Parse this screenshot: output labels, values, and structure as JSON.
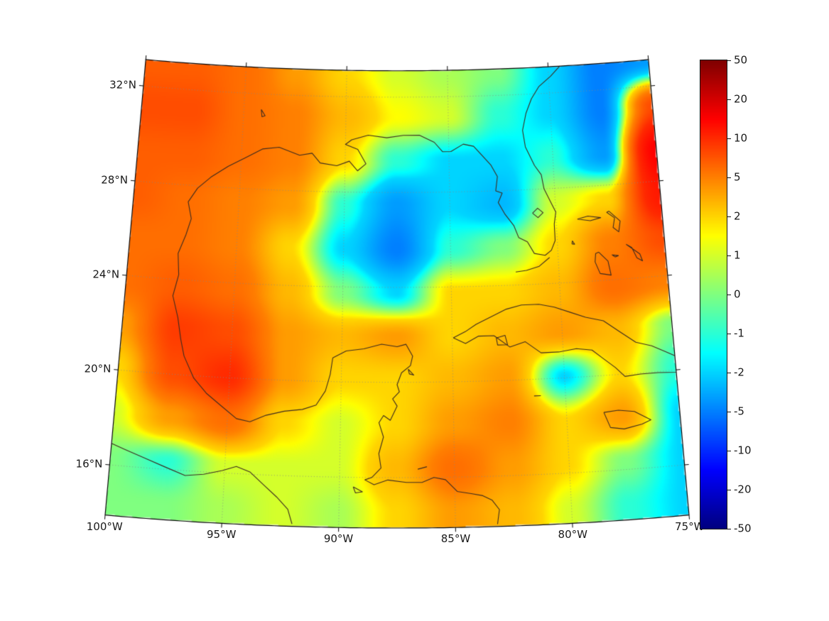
{
  "figure": {
    "background": "#ffffff"
  },
  "chart_data": {
    "type": "heatmap",
    "title": "",
    "projection": {
      "name": "lambert-conformal-conic",
      "lon0": -87.5,
      "lat1": 18,
      "lat2": 30
    },
    "extent": {
      "lon_min": -100,
      "lon_max": -75,
      "lat_min": 13.9,
      "lat_max": 33.1
    },
    "grid": {
      "lons": [
        -100,
        -97.5,
        -95,
        -92.5,
        -90,
        -87.5,
        -85,
        -82.5,
        -80,
        -77.5,
        -75
      ],
      "lats": [
        14.5,
        16.35,
        18.2,
        20.05,
        21.9,
        23.75,
        25.6,
        27.45,
        29.3,
        31.15,
        33
      ],
      "values": [
        [
          0,
          0,
          0.5,
          1,
          0.5,
          2,
          4,
          3,
          1,
          -1,
          -2
        ],
        [
          0,
          -1,
          1,
          1,
          1,
          3,
          6,
          4,
          2,
          0,
          -2
        ],
        [
          1,
          4,
          6,
          2,
          1,
          2,
          4,
          5,
          2,
          4,
          -2
        ],
        [
          2,
          8,
          10,
          4,
          2,
          2,
          3,
          4,
          -2,
          2,
          -1
        ],
        [
          4,
          9,
          8,
          4,
          3,
          4,
          2,
          3,
          4,
          3,
          0
        ],
        [
          6,
          7,
          6,
          3,
          0,
          -2,
          2,
          2,
          3,
          6,
          5
        ],
        [
          6,
          6,
          5,
          2,
          -2,
          -5,
          -1,
          0,
          2,
          5,
          8
        ],
        [
          7,
          6,
          5,
          4,
          -1,
          -4,
          -2,
          -3,
          1,
          2,
          12
        ],
        [
          7,
          7,
          6,
          5,
          2,
          -1,
          -2,
          -2,
          -1,
          -4,
          15
        ],
        [
          8,
          8,
          6,
          5,
          3,
          1.5,
          1,
          -1,
          -2,
          -5,
          8
        ],
        [
          7,
          7,
          6,
          4,
          2,
          1,
          0.5,
          0,
          -2,
          -5,
          -4
        ]
      ]
    },
    "color_scale": {
      "name": "jet",
      "min": -50,
      "max": 50,
      "levels": [
        -50,
        -20,
        -10,
        -5,
        -2,
        -1,
        0,
        1,
        2,
        5,
        10,
        20,
        50
      ]
    },
    "axes": {
      "lat_ticks": [
        {
          "value": 32,
          "label": "32°N"
        },
        {
          "value": 28,
          "label": "28°N"
        },
        {
          "value": 24,
          "label": "24°N"
        },
        {
          "value": 20,
          "label": "20°N"
        },
        {
          "value": 16,
          "label": "16°N"
        }
      ],
      "lon_ticks": [
        {
          "value": -100,
          "label": "100°W"
        },
        {
          "value": -95,
          "label": "95°W"
        },
        {
          "value": -90,
          "label": "90°W"
        },
        {
          "value": -85,
          "label": "85°W"
        },
        {
          "value": -80,
          "label": "80°W"
        },
        {
          "value": -75,
          "label": "75°W"
        }
      ],
      "graticule_lats": [
        16,
        20,
        24,
        28,
        32
      ],
      "graticule_lons": [
        -95,
        -90,
        -85,
        -80
      ],
      "graticule_color": "#888888",
      "border_color": "#000000"
    },
    "colorbar": {
      "tick_labels": [
        "50",
        "20",
        "10",
        "5",
        "2",
        "1",
        "0",
        "-1",
        "-2",
        "-5",
        "-10",
        "-20",
        "-50"
      ]
    },
    "coastline_color": "#3d2b1f",
    "coastlines": [
      [
        [
          -97.6,
          24.2
        ],
        [
          -97.7,
          25.1
        ],
        [
          -97.4,
          25.9
        ],
        [
          -97.2,
          26.6
        ],
        [
          -97.4,
          27.3
        ],
        [
          -97.0,
          27.9
        ],
        [
          -96.4,
          28.4
        ],
        [
          -95.6,
          28.9
        ],
        [
          -94.8,
          29.3
        ],
        [
          -94.0,
          29.7
        ],
        [
          -93.2,
          29.8
        ],
        [
          -92.2,
          29.5
        ],
        [
          -91.6,
          29.6
        ],
        [
          -91.2,
          29.2
        ],
        [
          -90.4,
          29.1
        ],
        [
          -89.8,
          29.3
        ],
        [
          -89.4,
          28.9
        ],
        [
          -89.0,
          29.2
        ],
        [
          -89.4,
          29.8
        ],
        [
          -90.0,
          30.0
        ],
        [
          -89.7,
          30.2
        ],
        [
          -88.9,
          30.4
        ],
        [
          -88.0,
          30.3
        ],
        [
          -87.2,
          30.4
        ],
        [
          -86.4,
          30.4
        ],
        [
          -85.7,
          30.1
        ],
        [
          -85.3,
          29.7
        ],
        [
          -84.9,
          29.7
        ],
        [
          -84.3,
          30.0
        ],
        [
          -83.8,
          29.9
        ],
        [
          -83.4,
          29.5
        ],
        [
          -83.0,
          29.1
        ],
        [
          -82.7,
          28.6
        ],
        [
          -82.8,
          28.0
        ],
        [
          -82.5,
          27.9
        ],
        [
          -82.7,
          27.5
        ],
        [
          -82.4,
          27.0
        ],
        [
          -82.0,
          26.5
        ],
        [
          -81.8,
          26.0
        ],
        [
          -81.4,
          25.8
        ],
        [
          -81.1,
          25.3
        ],
        [
          -80.6,
          25.2
        ],
        [
          -80.3,
          25.4
        ],
        [
          -80.1,
          25.8
        ],
        [
          -80.1,
          26.5
        ],
        [
          -80.0,
          27.0
        ],
        [
          -80.2,
          27.4
        ],
        [
          -80.5,
          28.0
        ],
        [
          -80.6,
          28.6
        ],
        [
          -80.9,
          29.0
        ],
        [
          -81.3,
          29.8
        ],
        [
          -81.4,
          30.5
        ],
        [
          -81.2,
          31.2
        ],
        [
          -80.9,
          31.8
        ],
        [
          -80.5,
          32.3
        ],
        [
          -79.9,
          32.7
        ],
        [
          -79.3,
          33.2
        ]
      ],
      [
        [
          -97.6,
          24.2
        ],
        [
          -97.8,
          23.3
        ],
        [
          -97.5,
          22.4
        ],
        [
          -97.3,
          21.5
        ],
        [
          -97.1,
          20.8
        ],
        [
          -96.6,
          19.9
        ],
        [
          -96.0,
          19.3
        ],
        [
          -95.3,
          18.8
        ],
        [
          -94.6,
          18.3
        ],
        [
          -94.0,
          18.2
        ],
        [
          -93.3,
          18.5
        ],
        [
          -92.5,
          18.7
        ],
        [
          -91.7,
          18.8
        ],
        [
          -91.1,
          19.0
        ],
        [
          -90.7,
          19.6
        ],
        [
          -90.5,
          20.3
        ],
        [
          -90.4,
          21.0
        ],
        [
          -89.8,
          21.3
        ],
        [
          -89.0,
          21.4
        ],
        [
          -88.2,
          21.6
        ],
        [
          -87.5,
          21.5
        ],
        [
          -87.1,
          21.6
        ],
        [
          -86.8,
          21.1
        ],
        [
          -86.9,
          20.7
        ],
        [
          -87.3,
          20.4
        ],
        [
          -87.5,
          19.9
        ],
        [
          -87.4,
          19.6
        ],
        [
          -87.7,
          19.3
        ],
        [
          -87.5,
          19.0
        ],
        [
          -87.8,
          18.4
        ],
        [
          -88.1,
          18.6
        ],
        [
          -88.3,
          18.3
        ],
        [
          -88.1,
          17.7
        ],
        [
          -88.3,
          17.0
        ],
        [
          -88.2,
          16.4
        ],
        [
          -88.6,
          16.0
        ],
        [
          -88.9,
          15.9
        ]
      ],
      [
        [
          -88.9,
          15.9
        ],
        [
          -88.5,
          15.7
        ],
        [
          -87.9,
          15.9
        ],
        [
          -87.1,
          15.8
        ],
        [
          -86.4,
          15.8
        ],
        [
          -85.9,
          16.0
        ],
        [
          -85.4,
          15.9
        ],
        [
          -84.9,
          15.4
        ],
        [
          -84.3,
          15.3
        ],
        [
          -83.8,
          15.2
        ],
        [
          -83.4,
          15.0
        ],
        [
          -83.1,
          14.6
        ],
        [
          -83.2,
          14.0
        ]
      ],
      [
        [
          -100.3,
          17.0
        ],
        [
          -99.4,
          16.7
        ],
        [
          -98.5,
          16.4
        ],
        [
          -97.6,
          16.1
        ],
        [
          -96.7,
          15.8
        ],
        [
          -95.9,
          15.9
        ],
        [
          -95.1,
          16.1
        ],
        [
          -94.5,
          16.3
        ],
        [
          -93.9,
          16.1
        ],
        [
          -93.3,
          15.6
        ],
        [
          -92.7,
          15.1
        ],
        [
          -92.2,
          14.6
        ],
        [
          -92.0,
          14.0
        ]
      ],
      [
        [
          -84.95,
          21.85
        ],
        [
          -84.4,
          22.1
        ],
        [
          -83.9,
          22.4
        ],
        [
          -83.2,
          22.7
        ],
        [
          -82.5,
          23.0
        ],
        [
          -81.8,
          23.15
        ],
        [
          -81.0,
          23.15
        ],
        [
          -80.3,
          23.0
        ],
        [
          -79.6,
          22.75
        ],
        [
          -78.9,
          22.5
        ],
        [
          -78.1,
          22.3
        ],
        [
          -77.4,
          21.8
        ],
        [
          -76.7,
          21.3
        ],
        [
          -76.0,
          21.1
        ],
        [
          -75.4,
          20.8
        ],
        [
          -74.8,
          20.5
        ],
        [
          -74.2,
          20.2
        ],
        [
          -74.4,
          20.0
        ],
        [
          -75.0,
          19.9
        ],
        [
          -75.8,
          19.95
        ],
        [
          -76.6,
          19.95
        ],
        [
          -77.3,
          19.9
        ],
        [
          -77.7,
          20.3
        ],
        [
          -78.2,
          20.7
        ],
        [
          -78.7,
          21.1
        ],
        [
          -79.4,
          21.2
        ],
        [
          -80.2,
          21.1
        ],
        [
          -81.0,
          21.1
        ],
        [
          -81.7,
          21.6
        ],
        [
          -82.4,
          21.4
        ],
        [
          -83.1,
          21.9
        ],
        [
          -83.8,
          21.9
        ],
        [
          -84.4,
          21.6
        ],
        [
          -84.95,
          21.85
        ]
      ],
      [
        [
          -83.0,
          21.8
        ],
        [
          -82.6,
          21.9
        ],
        [
          -82.5,
          21.5
        ],
        [
          -82.95,
          21.5
        ],
        [
          -83.0,
          21.8
        ]
      ],
      [
        [
          -78.35,
          18.45
        ],
        [
          -77.7,
          18.5
        ],
        [
          -77.0,
          18.4
        ],
        [
          -76.3,
          18.0
        ],
        [
          -76.7,
          17.85
        ],
        [
          -77.5,
          17.7
        ],
        [
          -78.1,
          17.8
        ],
        [
          -78.35,
          18.45
        ]
      ],
      [
        [
          -79.0,
          26.65
        ],
        [
          -78.4,
          26.55
        ],
        [
          -77.9,
          26.65
        ],
        [
          -78.5,
          26.75
        ],
        [
          -79.0,
          26.65
        ]
      ],
      [
        [
          -77.5,
          26.9
        ],
        [
          -77.0,
          26.45
        ],
        [
          -77.1,
          26.0
        ],
        [
          -77.35,
          26.2
        ],
        [
          -77.25,
          26.6
        ],
        [
          -77.6,
          26.85
        ],
        [
          -77.5,
          26.9
        ]
      ],
      [
        [
          -78.1,
          25.2
        ],
        [
          -77.7,
          24.8
        ],
        [
          -77.6,
          24.2
        ],
        [
          -78.1,
          24.3
        ],
        [
          -78.3,
          24.8
        ],
        [
          -78.25,
          25.15
        ],
        [
          -78.1,
          25.2
        ]
      ],
      [
        [
          -76.8,
          25.45
        ],
        [
          -76.2,
          25.0
        ],
        [
          -76.1,
          24.7
        ],
        [
          -76.35,
          24.85
        ],
        [
          -76.55,
          25.3
        ],
        [
          -76.8,
          25.45
        ]
      ],
      [
        [
          -77.5,
          25.05
        ],
        [
          -77.2,
          25.0
        ],
        [
          -77.35,
          24.95
        ],
        [
          -77.5,
          25.05
        ]
      ],
      [
        [
          -79.3,
          25.75
        ],
        [
          -79.2,
          25.6
        ],
        [
          -79.32,
          25.62
        ],
        [
          -79.3,
          25.75
        ]
      ],
      [
        [
          -80.4,
          25.1
        ],
        [
          -80.9,
          24.75
        ],
        [
          -81.5,
          24.6
        ],
        [
          -82.0,
          24.55
        ]
      ],
      [
        [
          -81.1,
          27.0
        ],
        [
          -80.85,
          27.2
        ],
        [
          -80.6,
          27.0
        ],
        [
          -80.85,
          26.8
        ],
        [
          -81.1,
          27.0
        ]
      ],
      [
        [
          -87.0,
          20.55
        ],
        [
          -86.75,
          20.3
        ],
        [
          -86.95,
          20.35
        ],
        [
          -87.0,
          20.55
        ]
      ],
      [
        [
          -94.15,
          31.35
        ],
        [
          -93.95,
          31.1
        ],
        [
          -94.1,
          31.05
        ],
        [
          -94.15,
          31.35
        ]
      ],
      [
        [
          -89.4,
          15.6
        ],
        [
          -89.0,
          15.4
        ],
        [
          -89.3,
          15.35
        ],
        [
          -89.4,
          15.6
        ]
      ],
      [
        [
          -81.4,
          19.3
        ],
        [
          -81.1,
          19.3
        ]
      ],
      [
        [
          -86.6,
          16.35
        ],
        [
          -86.2,
          16.45
        ]
      ]
    ]
  }
}
